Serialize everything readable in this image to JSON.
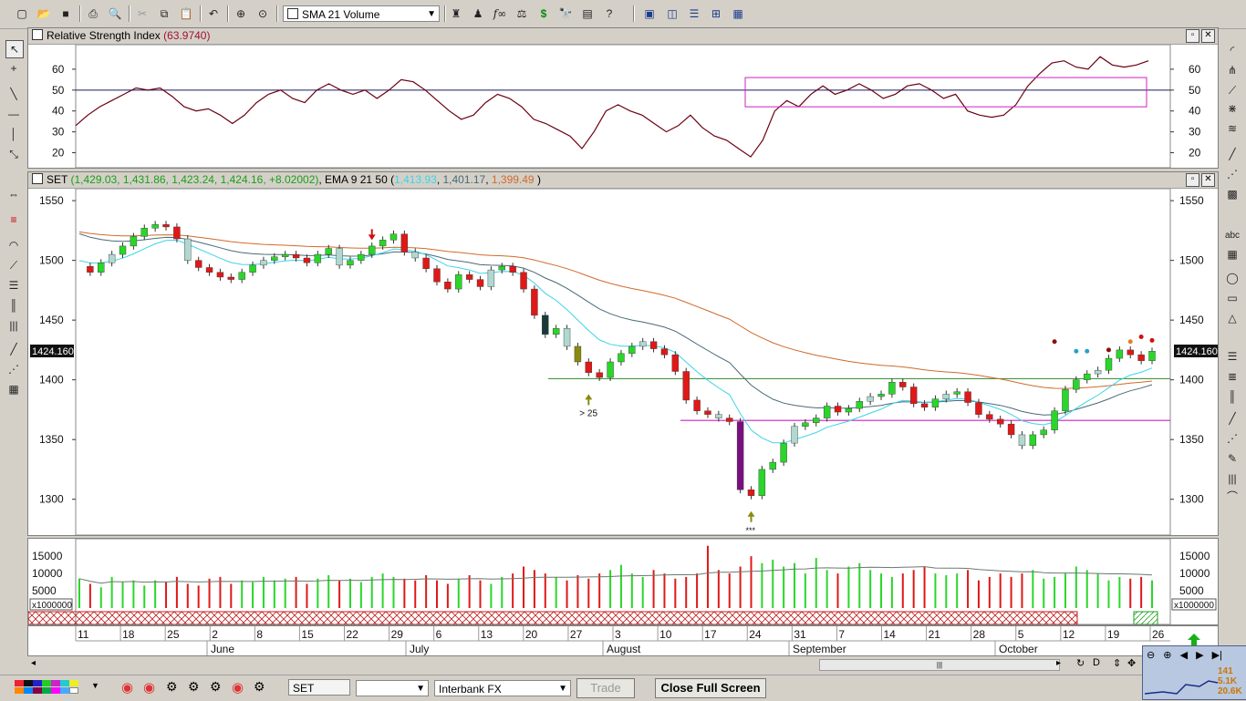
{
  "toolbar": {
    "indicator_combo": "SMA 21 Volume",
    "icons": [
      "new-icon",
      "open-icon",
      "save-icon",
      "print-icon",
      "print-preview-icon",
      "cut-icon",
      "copy-icon",
      "paste-icon",
      "undo-icon",
      "crosshair-icon",
      "zoom-icon",
      "chart-type-icon",
      "expert-icon",
      "wizard-icon",
      "function-icon",
      "indicator-icon",
      "dollar-icon",
      "binoculars-icon",
      "properties-icon",
      "help-icon",
      "layout-icon",
      "tile-v-icon",
      "tile-h-icon",
      "tile-grid-icon",
      "arrange-icon"
    ]
  },
  "rsi_panel": {
    "title": "Relative Strength Index",
    "value": "(63.9740)",
    "ticks": [
      "60",
      "50",
      "40",
      "30",
      "20"
    ]
  },
  "price_panel": {
    "symbol": "SET",
    "ohlc": "(1,429.03, 1,431.86, 1,423.24, 1,424.16, +8.02002)",
    "ema_label": "EMA 9 21 50",
    "ema_open": "(",
    "ema9": "1,413.93",
    "ema21": "1,401.17",
    "ema50": "1,399.49",
    "ema_close": ")",
    "ticks": [
      "1550",
      "1500",
      "1450",
      "1400",
      "1350",
      "1300"
    ],
    "last_price": "1424.160",
    "annotation_gt25": "> 25",
    "annotation_stars": "***"
  },
  "volume_panel": {
    "ticks": [
      "15000",
      "10000",
      "5000"
    ],
    "multiplier": "x1000000"
  },
  "time_axis": {
    "days": [
      "11",
      "18",
      "25",
      "2",
      "8",
      "15",
      "22",
      "29",
      "6",
      "13",
      "20",
      "27",
      "3",
      "10",
      "17",
      "24",
      "31",
      "7",
      "14",
      "21",
      "28",
      "5",
      "12",
      "19",
      "26"
    ],
    "months": [
      "June",
      "July",
      "August",
      "September",
      "October"
    ]
  },
  "bottom_bar": {
    "symbol_input": "SET",
    "period_combo": "",
    "data_source_combo": "Interbank FX",
    "trade_button": "Trade",
    "close_full_screen_button": "Close Full Screen"
  },
  "thumbnail": {
    "values": [
      "141",
      "5.1K",
      "20.6K"
    ]
  },
  "colors": {
    "up_candle": "#2ad62a",
    "down_candle": "#e01818",
    "ema9": "#3cd4e8",
    "ema21": "#4a6a78",
    "ema50": "#d06a2a",
    "rsi_line": "#6a0010",
    "highlight_box": "#d020c0"
  },
  "chart_data": [
    {
      "type": "line",
      "title": "Relative Strength Index",
      "series": [
        {
          "name": "Relative Strength Index",
          "values": [
            33,
            38,
            42,
            45,
            48,
            51,
            50,
            51,
            47,
            42,
            40,
            41,
            38,
            34,
            38,
            44,
            48,
            50,
            46,
            44,
            50,
            53,
            50,
            48,
            50,
            46,
            50,
            55,
            54,
            50,
            45,
            40,
            36,
            38,
            44,
            48,
            46,
            42,
            36,
            34,
            31,
            28,
            22,
            30,
            40,
            43,
            40,
            38,
            34,
            30,
            33,
            38,
            32,
            28,
            26,
            22,
            18,
            26,
            40,
            45,
            42,
            48,
            52,
            48,
            50,
            53,
            50,
            46,
            48,
            52,
            53,
            50,
            46,
            48,
            40,
            38,
            37,
            38,
            43,
            52,
            58,
            63,
            64,
            61,
            60,
            66,
            62,
            61,
            62,
            64
          ]
        }
      ],
      "ylim": [
        15,
        70
      ]
    },
    {
      "type": "bar",
      "series": [
        {
          "name": "SET",
          "values": [
            1495,
            1490,
            1498,
            1505,
            1512,
            1520,
            1527,
            1530,
            1528,
            1518,
            1500,
            1494,
            1490,
            1486,
            1484,
            1490,
            1496,
            1500,
            1503,
            1505,
            1502,
            1498,
            1505,
            1510,
            1496,
            1500,
            1505,
            1512,
            1517,
            1522,
            1507,
            1502,
            1493,
            1482,
            1476,
            1488,
            1484,
            1478,
            1492,
            1495,
            1490,
            1476,
            1454,
            1438,
            1443,
            1428,
            1415,
            1406,
            1402,
            1415,
            1422,
            1428,
            1432,
            1426,
            1421,
            1407,
            1383,
            1374,
            1371,
            1368,
            1365,
            1308,
            1303,
            1325,
            1331,
            1347,
            1361,
            1364,
            1368,
            1378,
            1373,
            1376,
            1382,
            1386,
            1388,
            1398,
            1394,
            1380,
            1377,
            1384,
            1388,
            1390,
            1381,
            1371,
            1367,
            1363,
            1354,
            1345,
            1354,
            1358,
            1374,
            1392,
            1400,
            1405,
            1408,
            1418,
            1425,
            1421,
            1416,
            1424
          ]
        }
      ],
      "ylim": [
        1270,
        1560
      ]
    },
    {
      "type": "bar",
      "series": [
        {
          "name": "Volume",
          "values": [
            8.5,
            7,
            6,
            9,
            7.5,
            8,
            6.5,
            8,
            7.5,
            9,
            7,
            6.5,
            8.5,
            9,
            7,
            8,
            7.5,
            9,
            8,
            8.5,
            9,
            7,
            8.5,
            9.5,
            8,
            8.5,
            7.5,
            9,
            10,
            9,
            8.5,
            8,
            9.5,
            8,
            7,
            8.5,
            9.5,
            8,
            7,
            9,
            10,
            12,
            11,
            10,
            9,
            8,
            9.5,
            8.5,
            10,
            11,
            12.5,
            10,
            9,
            11,
            10,
            8.5,
            9,
            10,
            18,
            11,
            10,
            12,
            15,
            13,
            14,
            12,
            13,
            10,
            14.5,
            11,
            10,
            12,
            13,
            11,
            10,
            9,
            10,
            11,
            12,
            10,
            9.5,
            10,
            11,
            8,
            9,
            10,
            9,
            10,
            11,
            8.5,
            9,
            10,
            12,
            11,
            10,
            8,
            9,
            8.5,
            9,
            8
          ]
        }
      ],
      "ylim": [
        0,
        19
      ],
      "ylabel": "x1000000"
    }
  ]
}
